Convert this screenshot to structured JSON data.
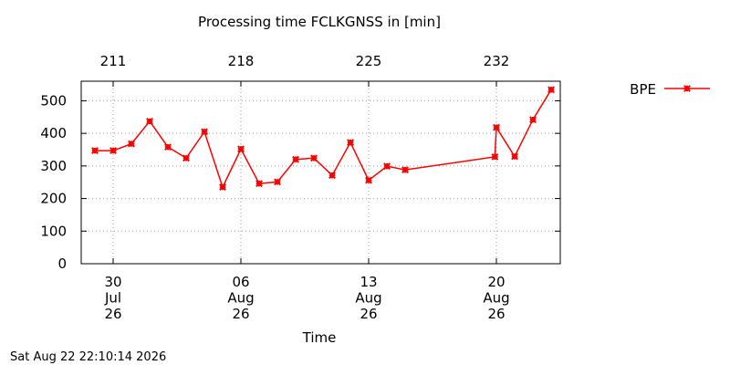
{
  "chart_data": {
    "type": "line",
    "title": "Processing time FCLKGNSS in [min]",
    "xlabel": "Time",
    "ylabel": "",
    "ylim": [
      0,
      560
    ],
    "y_ticks": [
      "0",
      "100",
      "200",
      "300",
      "400",
      "500"
    ],
    "xlim": [
      "2026-07-28T06:00",
      "2026-08-23T12:00"
    ],
    "x_ticks_bottom": [
      {
        "date": "2026-07-30",
        "lines": [
          "30",
          "Jul",
          "26"
        ]
      },
      {
        "date": "2026-08-06",
        "lines": [
          "06",
          "Aug",
          "26"
        ]
      },
      {
        "date": "2026-08-13",
        "lines": [
          "13",
          "Aug",
          "26"
        ]
      },
      {
        "date": "2026-08-20",
        "lines": [
          "20",
          "Aug",
          "26"
        ]
      }
    ],
    "x_ticks_top": [
      {
        "date": "2026-07-30",
        "label": "211"
      },
      {
        "date": "2026-08-06",
        "label": "218"
      },
      {
        "date": "2026-08-13",
        "label": "225"
      },
      {
        "date": "2026-08-20",
        "label": "232"
      }
    ],
    "grid": true,
    "legend_position": "top-right",
    "series": [
      {
        "name": "BPE",
        "color": "#ff0000",
        "marker": "x",
        "points": [
          {
            "x": "2026-07-29",
            "y": 347
          },
          {
            "x": "2026-07-30",
            "y": 347
          },
          {
            "x": "2026-07-31",
            "y": 368
          },
          {
            "x": "2026-08-01",
            "y": 437
          },
          {
            "x": "2026-08-02",
            "y": 358
          },
          {
            "x": "2026-08-03",
            "y": 324
          },
          {
            "x": "2026-08-04",
            "y": 405
          },
          {
            "x": "2026-08-05",
            "y": 235
          },
          {
            "x": "2026-08-06",
            "y": 352
          },
          {
            "x": "2026-08-07",
            "y": 246
          },
          {
            "x": "2026-08-08",
            "y": 251
          },
          {
            "x": "2026-08-09",
            "y": 320
          },
          {
            "x": "2026-08-10",
            "y": 324
          },
          {
            "x": "2026-08-11",
            "y": 271
          },
          {
            "x": "2026-08-12",
            "y": 372
          },
          {
            "x": "2026-08-13",
            "y": 256
          },
          {
            "x": "2026-08-14",
            "y": 299
          },
          {
            "x": "2026-08-15",
            "y": 288
          },
          {
            "x": "2026-08-19T22:00",
            "y": 328
          },
          {
            "x": "2026-08-20T00:00",
            "y": 418
          },
          {
            "x": "2026-08-21",
            "y": 329
          },
          {
            "x": "2026-08-22",
            "y": 442
          },
          {
            "x": "2026-08-23",
            "y": 534
          }
        ]
      }
    ]
  },
  "footer_timestamp": "Sat Aug 22 22:10:14 2026"
}
